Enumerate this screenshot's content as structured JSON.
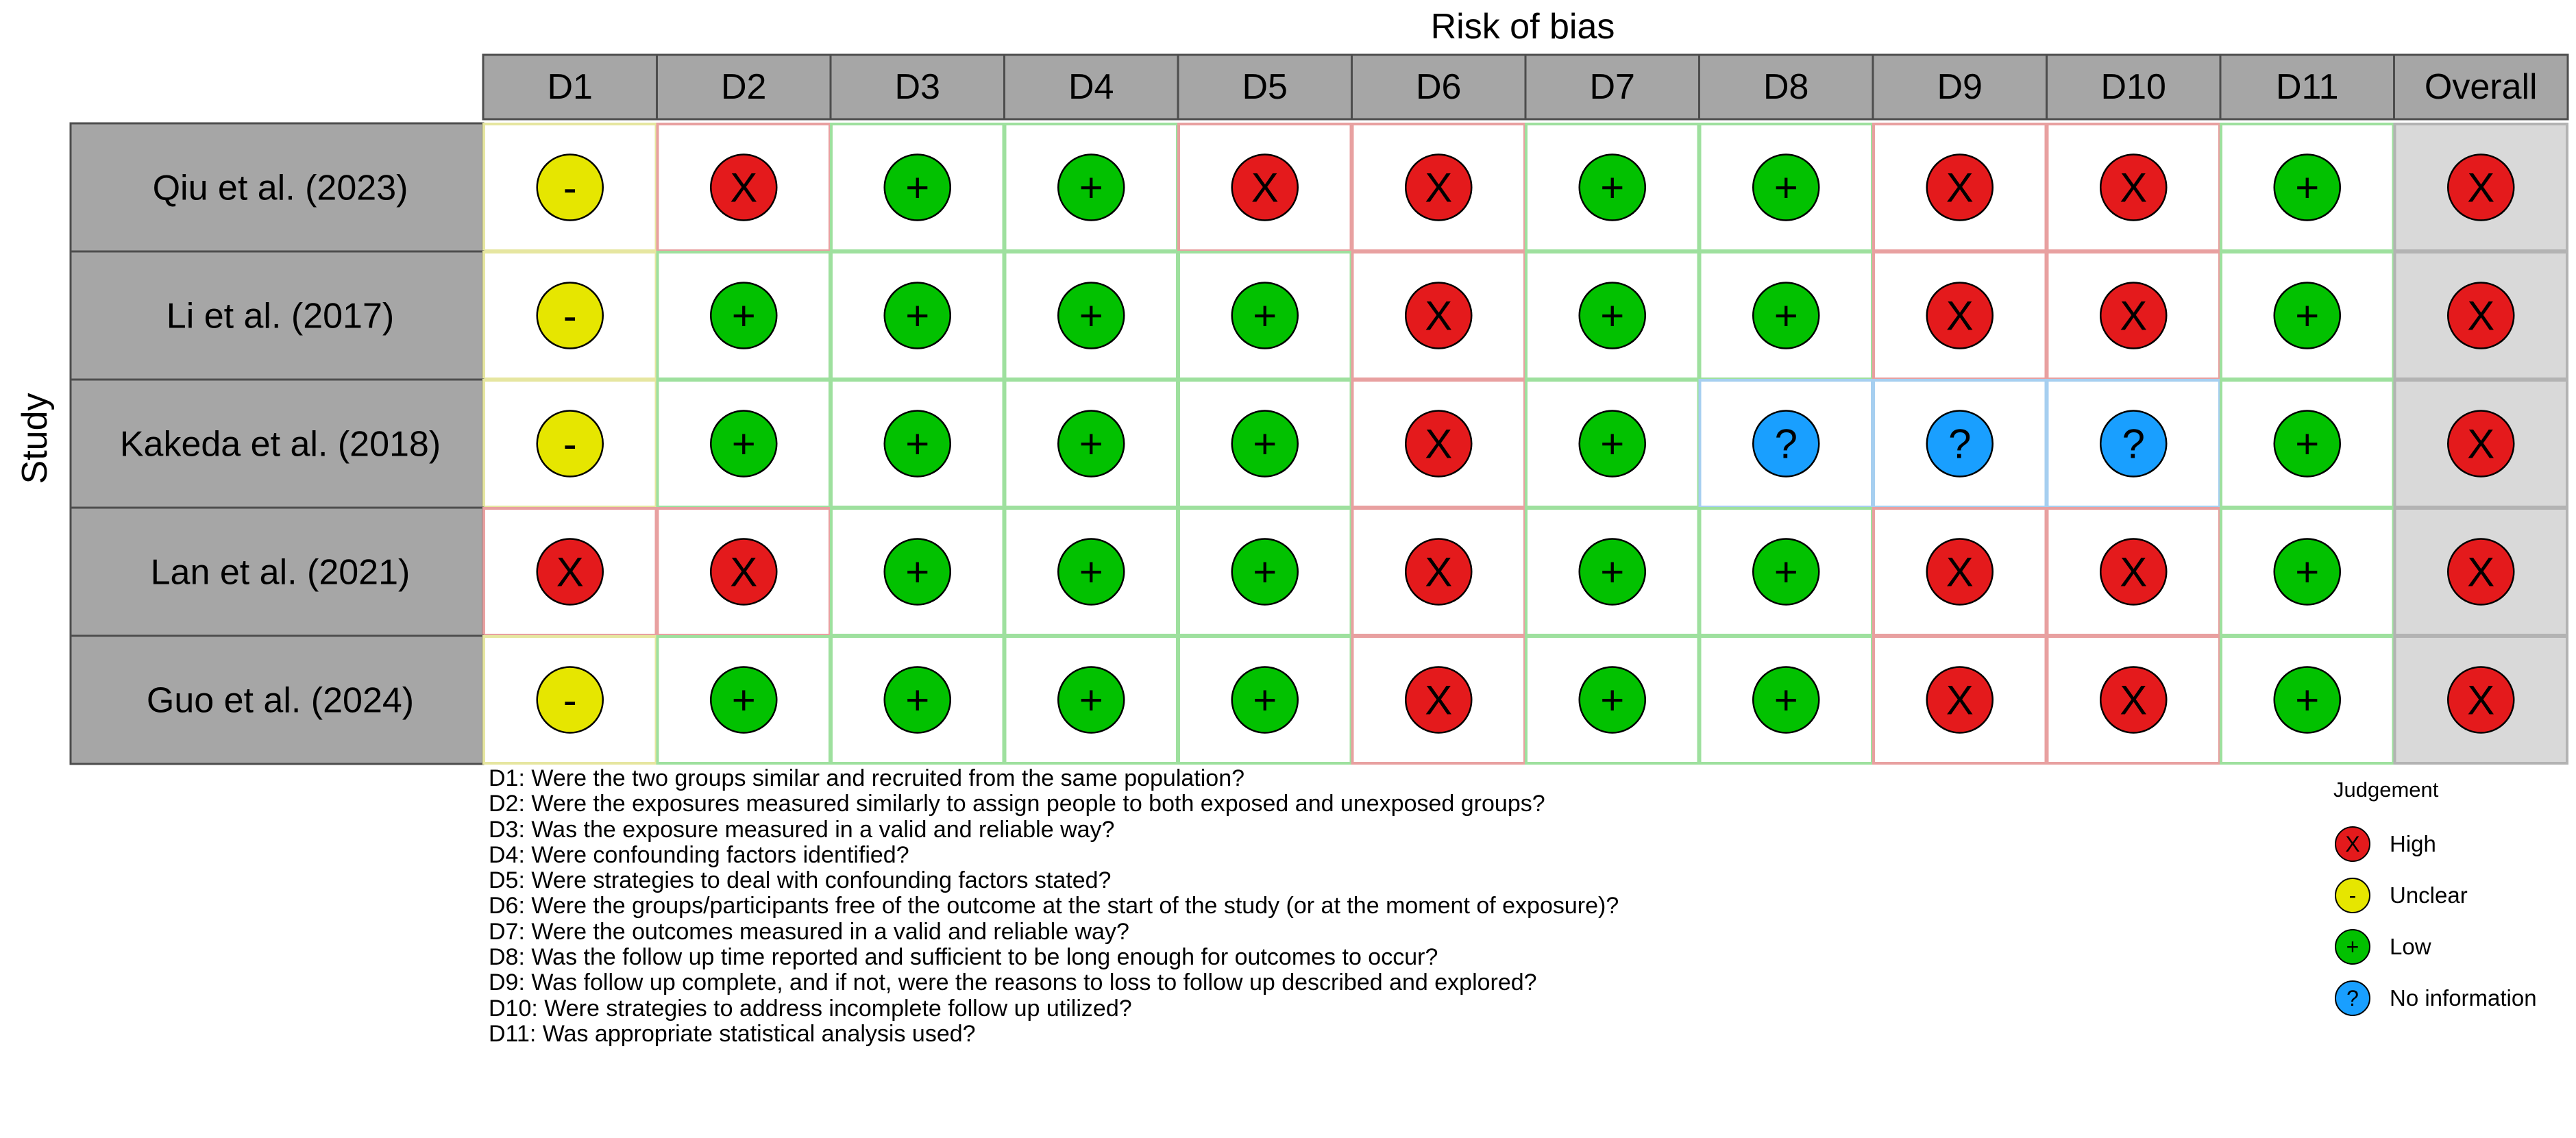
{
  "chart_data": {
    "type": "table",
    "title": "Risk of bias",
    "ylabel": "Study",
    "domains": [
      "D1",
      "D2",
      "D3",
      "D4",
      "D5",
      "D6",
      "D7",
      "D8",
      "D9",
      "D10",
      "D11",
      "Overall"
    ],
    "studies": [
      "Qiu et al. (2023)",
      "Li et al. (2017)",
      "Kakeda et al. (2018)",
      "Lan et al. (2021)",
      "Guo et al. (2024)"
    ],
    "judgements": [
      [
        "Unclear",
        "High",
        "Low",
        "Low",
        "High",
        "High",
        "Low",
        "Low",
        "High",
        "High",
        "Low",
        "High"
      ],
      [
        "Unclear",
        "Low",
        "Low",
        "Low",
        "Low",
        "High",
        "Low",
        "Low",
        "High",
        "High",
        "Low",
        "High"
      ],
      [
        "Unclear",
        "Low",
        "Low",
        "Low",
        "Low",
        "High",
        "Low",
        "No information",
        "No information",
        "No information",
        "Low",
        "High"
      ],
      [
        "High",
        "High",
        "Low",
        "Low",
        "Low",
        "High",
        "Low",
        "Low",
        "High",
        "High",
        "Low",
        "High"
      ],
      [
        "Unclear",
        "Low",
        "Low",
        "Low",
        "Low",
        "High",
        "Low",
        "Low",
        "High",
        "High",
        "Low",
        "High"
      ]
    ],
    "legend": {
      "title": "Judgement",
      "position": "bottom-right",
      "items": [
        {
          "label": "High",
          "symbol": "X",
          "color": "#e41a1c"
        },
        {
          "label": "Unclear",
          "symbol": "-",
          "color": "#e6e600"
        },
        {
          "label": "Low",
          "symbol": "+",
          "color": "#02c100"
        },
        {
          "label": "No information",
          "symbol": "?",
          "color": "#199fff"
        }
      ]
    },
    "domain_notes": [
      "D1: Were the two groups similar and recruited from the same population?",
      "D2: Were the exposures measured similarly to assign people to both exposed and unexposed groups?",
      "D3: Was the exposure measured in a valid and reliable way?",
      "D4: Were confounding factors identified?",
      "D5: Were strategies to deal with confounding factors stated?",
      "D6: Were the groups/participants free of the outcome at the start of the study (or at the moment of exposure)?",
      "D7: Were the outcomes measured in a valid and reliable way?",
      "D8: Was the follow up time reported and sufficient to be long enough for outcomes to occur?",
      "D9: Was follow up complete, and if not, were the reasons to loss to follow up described and explored?",
      "D10: Were strategies to address incomplete follow up utilized?",
      "D11: Was appropriate statistical analysis used?"
    ]
  },
  "colors": {
    "header_fill": "#a6a6a6",
    "study_fill": "#a6a6a6",
    "overall_fill": "#d9d9d9",
    "High": "#e41a1c",
    "Unclear": "#e6e600",
    "Low": "#02c100",
    "No information": "#199fff",
    "border_High": "#e8a0a0",
    "border_Unclear": "#e6e6a0",
    "border_Low": "#9ee09e",
    "border_No information": "#a6cff0"
  },
  "symbols": {
    "High": "X",
    "Unclear": "-",
    "Low": "+",
    "No information": "?"
  }
}
